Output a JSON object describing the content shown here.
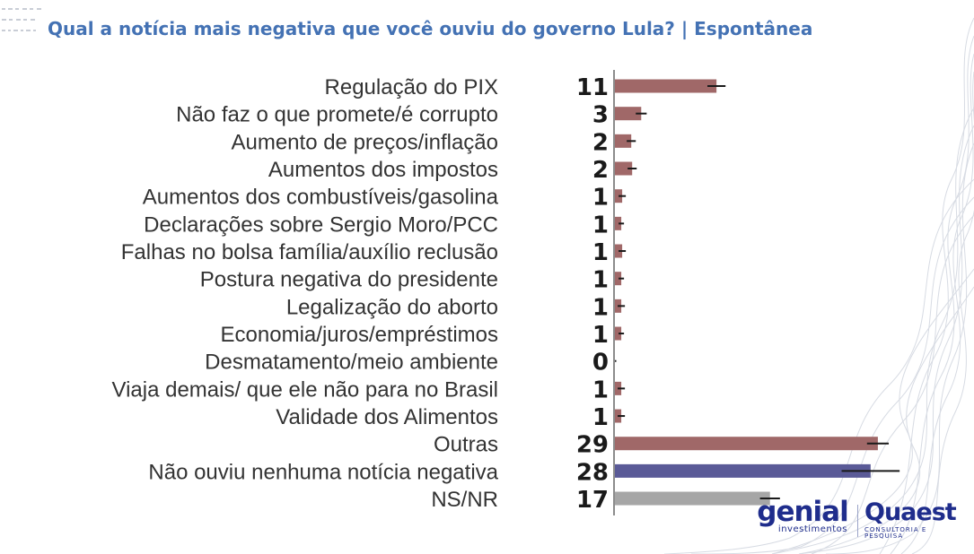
{
  "page": {
    "title": "Qual a notícia mais negativa que você ouviu do governo Lula? | Espontânea"
  },
  "logos": {
    "genial": {
      "brand": "genial",
      "sub": "investimentos"
    },
    "quaest": {
      "brand": "Quaest",
      "sub": "CONSULTORIA E PESQUISA"
    }
  },
  "colors": {
    "title": "#4472b4",
    "bar_default": "#a06868",
    "bar_highlight": "#5a5a97",
    "bar_neutral": "#a6a6a6",
    "axis": "#8c8c8c",
    "error": "#1a1a1a"
  },
  "chart_data": {
    "type": "bar",
    "orientation": "horizontal",
    "title": "Qual a notícia mais negativa que você ouviu do governo Lula? | Espontânea",
    "xlim": [
      0,
      30
    ],
    "grid": false,
    "legend": "none",
    "categories": [
      "Regulação do PIX",
      "Não faz o que promete/é corrupto",
      "Aumento de preços/inflação",
      "Aumentos dos impostos",
      "Aumentos dos combustíveis/gasolina",
      "Declarações sobre Sergio Moro/PCC",
      "Falhas no bolsa família/auxílio reclusão",
      "Postura negativa do presidente",
      "Legalização do aborto",
      "Economia/juros/empréstimos",
      "Desmatamento/meio ambiente",
      "Viaja demais/ que ele não para no Brasil",
      "Validade dos Alimentos",
      "Outras",
      "Não ouviu nenhuma notícia negativa",
      "NS/NR"
    ],
    "values": [
      11,
      3,
      2,
      2,
      1,
      1,
      1,
      1,
      1,
      1,
      0,
      1,
      1,
      29,
      28,
      17
    ],
    "bar_values": [
      11.3,
      3.0,
      1.9,
      2.0,
      0.9,
      0.8,
      0.9,
      0.8,
      0.8,
      0.8,
      0.05,
      0.8,
      0.8,
      29.1,
      28.3,
      17.2
    ],
    "error_margin": [
      1.0,
      0.6,
      0.5,
      0.5,
      0.4,
      0.3,
      0.4,
      0.3,
      0.4,
      0.3,
      0.2,
      0.4,
      0.4,
      1.2,
      3.2,
      1.1
    ],
    "bar_colors": [
      "default",
      "default",
      "default",
      "default",
      "default",
      "default",
      "default",
      "default",
      "default",
      "default",
      "default",
      "default",
      "default",
      "default",
      "highlight",
      "neutral"
    ]
  }
}
